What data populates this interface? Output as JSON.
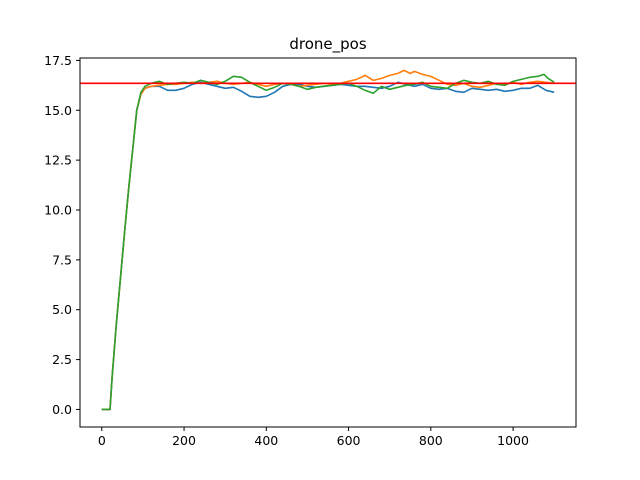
{
  "chart_data": {
    "type": "line",
    "title": "drone_pos",
    "xlabel": "",
    "ylabel": "",
    "xlim": [
      -53,
      1153
    ],
    "ylim": [
      -0.88,
      17.62
    ],
    "xticks": [
      0,
      200,
      400,
      600,
      800,
      1000
    ],
    "xtick_labels": [
      "0",
      "200",
      "400",
      "600",
      "800",
      "1000"
    ],
    "yticks": [
      0.0,
      2.5,
      5.0,
      7.5,
      10.0,
      12.5,
      15.0,
      17.5
    ],
    "ytick_labels": [
      "0.0",
      "2.5",
      "5.0",
      "7.5",
      "10.0",
      "12.5",
      "15.0",
      "17.5"
    ],
    "grid": false,
    "legend": "none",
    "reference_line": {
      "y": 16.35,
      "color": "#ff0000"
    },
    "series": [
      {
        "color": "#1f77b4",
        "points": [
          [
            0,
            0
          ],
          [
            10,
            0
          ],
          [
            20,
            0
          ],
          [
            25,
            1.6
          ],
          [
            35,
            4.2
          ],
          [
            45,
            6.5
          ],
          [
            55,
            8.8
          ],
          [
            65,
            11.0
          ],
          [
            75,
            13.0
          ],
          [
            85,
            15.0
          ],
          [
            95,
            15.8
          ],
          [
            105,
            16.1
          ],
          [
            120,
            16.2
          ],
          [
            140,
            16.2
          ],
          [
            160,
            16.0
          ],
          [
            180,
            16.0
          ],
          [
            200,
            16.1
          ],
          [
            220,
            16.3
          ],
          [
            240,
            16.4
          ],
          [
            260,
            16.3
          ],
          [
            280,
            16.2
          ],
          [
            300,
            16.1
          ],
          [
            320,
            16.15
          ],
          [
            340,
            15.95
          ],
          [
            360,
            15.7
          ],
          [
            380,
            15.65
          ],
          [
            400,
            15.7
          ],
          [
            420,
            15.9
          ],
          [
            440,
            16.2
          ],
          [
            460,
            16.3
          ],
          [
            480,
            16.3
          ],
          [
            500,
            16.2
          ],
          [
            520,
            16.15
          ],
          [
            540,
            16.2
          ],
          [
            560,
            16.25
          ],
          [
            580,
            16.3
          ],
          [
            600,
            16.25
          ],
          [
            620,
            16.2
          ],
          [
            640,
            16.2
          ],
          [
            660,
            16.15
          ],
          [
            680,
            16.1
          ],
          [
            700,
            16.2
          ],
          [
            720,
            16.4
          ],
          [
            740,
            16.3
          ],
          [
            760,
            16.2
          ],
          [
            780,
            16.3
          ],
          [
            800,
            16.1
          ],
          [
            820,
            16.05
          ],
          [
            840,
            16.1
          ],
          [
            860,
            15.95
          ],
          [
            880,
            15.9
          ],
          [
            900,
            16.1
          ],
          [
            920,
            16.05
          ],
          [
            940,
            16.0
          ],
          [
            960,
            16.05
          ],
          [
            980,
            15.95
          ],
          [
            1000,
            16.0
          ],
          [
            1020,
            16.1
          ],
          [
            1040,
            16.1
          ],
          [
            1060,
            16.25
          ],
          [
            1080,
            16.0
          ],
          [
            1100,
            15.9
          ]
        ]
      },
      {
        "color": "#ff7f0e",
        "points": [
          [
            0,
            0
          ],
          [
            10,
            0
          ],
          [
            20,
            0
          ],
          [
            25,
            1.6
          ],
          [
            35,
            4.2
          ],
          [
            45,
            6.5
          ],
          [
            55,
            8.8
          ],
          [
            65,
            11.0
          ],
          [
            75,
            13.0
          ],
          [
            85,
            15.0
          ],
          [
            95,
            15.8
          ],
          [
            105,
            16.1
          ],
          [
            120,
            16.2
          ],
          [
            140,
            16.25
          ],
          [
            160,
            16.3
          ],
          [
            180,
            16.3
          ],
          [
            200,
            16.35
          ],
          [
            220,
            16.4
          ],
          [
            240,
            16.35
          ],
          [
            260,
            16.4
          ],
          [
            280,
            16.45
          ],
          [
            300,
            16.35
          ],
          [
            320,
            16.3
          ],
          [
            340,
            16.35
          ],
          [
            360,
            16.4
          ],
          [
            380,
            16.3
          ],
          [
            400,
            16.2
          ],
          [
            420,
            16.3
          ],
          [
            440,
            16.35
          ],
          [
            460,
            16.3
          ],
          [
            480,
            16.2
          ],
          [
            500,
            16.25
          ],
          [
            520,
            16.3
          ],
          [
            540,
            16.35
          ],
          [
            560,
            16.3
          ],
          [
            580,
            16.35
          ],
          [
            600,
            16.45
          ],
          [
            620,
            16.55
          ],
          [
            640,
            16.75
          ],
          [
            660,
            16.5
          ],
          [
            680,
            16.6
          ],
          [
            700,
            16.75
          ],
          [
            720,
            16.85
          ],
          [
            735,
            17.0
          ],
          [
            750,
            16.85
          ],
          [
            760,
            16.95
          ],
          [
            780,
            16.8
          ],
          [
            800,
            16.7
          ],
          [
            820,
            16.5
          ],
          [
            840,
            16.3
          ],
          [
            860,
            16.25
          ],
          [
            880,
            16.35
          ],
          [
            900,
            16.2
          ],
          [
            920,
            16.15
          ],
          [
            940,
            16.25
          ],
          [
            960,
            16.35
          ],
          [
            980,
            16.3
          ],
          [
            1000,
            16.4
          ],
          [
            1020,
            16.3
          ],
          [
            1040,
            16.4
          ],
          [
            1060,
            16.45
          ],
          [
            1080,
            16.4
          ],
          [
            1100,
            16.35
          ]
        ]
      },
      {
        "color": "#2ca02c",
        "points": [
          [
            0,
            0
          ],
          [
            10,
            0
          ],
          [
            20,
            0
          ],
          [
            25,
            1.6
          ],
          [
            35,
            4.2
          ],
          [
            45,
            6.5
          ],
          [
            55,
            8.8
          ],
          [
            65,
            11.0
          ],
          [
            75,
            13.0
          ],
          [
            85,
            15.0
          ],
          [
            95,
            15.9
          ],
          [
            105,
            16.2
          ],
          [
            120,
            16.35
          ],
          [
            140,
            16.45
          ],
          [
            160,
            16.3
          ],
          [
            180,
            16.35
          ],
          [
            200,
            16.4
          ],
          [
            220,
            16.35
          ],
          [
            240,
            16.5
          ],
          [
            260,
            16.4
          ],
          [
            280,
            16.3
          ],
          [
            300,
            16.45
          ],
          [
            320,
            16.7
          ],
          [
            340,
            16.65
          ],
          [
            360,
            16.4
          ],
          [
            380,
            16.2
          ],
          [
            400,
            16.0
          ],
          [
            420,
            16.15
          ],
          [
            440,
            16.35
          ],
          [
            460,
            16.3
          ],
          [
            480,
            16.2
          ],
          [
            500,
            16.05
          ],
          [
            520,
            16.15
          ],
          [
            540,
            16.2
          ],
          [
            560,
            16.25
          ],
          [
            580,
            16.3
          ],
          [
            600,
            16.35
          ],
          [
            620,
            16.2
          ],
          [
            640,
            16.0
          ],
          [
            660,
            15.85
          ],
          [
            680,
            16.2
          ],
          [
            700,
            16.05
          ],
          [
            720,
            16.15
          ],
          [
            740,
            16.25
          ],
          [
            760,
            16.3
          ],
          [
            780,
            16.4
          ],
          [
            800,
            16.2
          ],
          [
            820,
            16.15
          ],
          [
            840,
            16.1
          ],
          [
            860,
            16.35
          ],
          [
            880,
            16.5
          ],
          [
            900,
            16.4
          ],
          [
            920,
            16.35
          ],
          [
            940,
            16.45
          ],
          [
            960,
            16.3
          ],
          [
            980,
            16.25
          ],
          [
            1000,
            16.45
          ],
          [
            1020,
            16.55
          ],
          [
            1040,
            16.65
          ],
          [
            1060,
            16.7
          ],
          [
            1075,
            16.8
          ],
          [
            1085,
            16.6
          ],
          [
            1100,
            16.4
          ]
        ]
      }
    ]
  }
}
